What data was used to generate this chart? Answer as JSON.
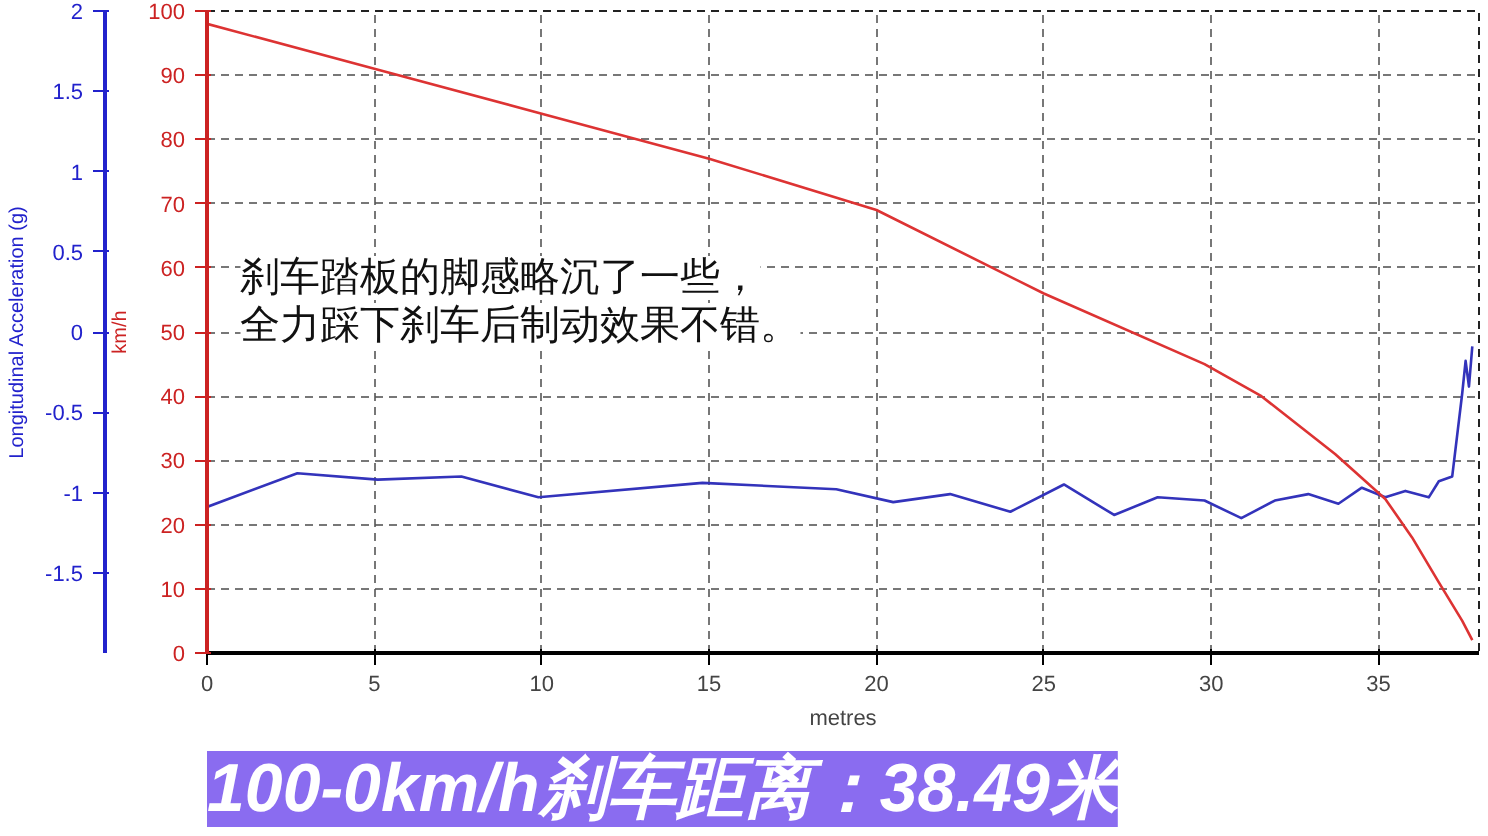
{
  "chart_data": {
    "type": "line",
    "title": "100-0km/h刹车距离：38.49米",
    "xlabel": "metres",
    "ylabel": "Longitudinal Acceleration (g)",
    "y2label": "km/h",
    "annotations": [
      "刹车踏板的脚感略沉了一些，",
      "全力踩下刹车后制动效果不错。"
    ],
    "xlim": [
      0,
      38
    ],
    "xticks": [
      0,
      5,
      10,
      15,
      20,
      25,
      30,
      35
    ],
    "ylim": [
      -2,
      2
    ],
    "yticks": [
      -1.5,
      -1,
      -0.5,
      0,
      0.5,
      1,
      1.5,
      2
    ],
    "y2lim": [
      0,
      100
    ],
    "y2ticks": [
      0,
      10,
      20,
      30,
      40,
      50,
      60,
      70,
      80,
      90,
      100
    ],
    "grid": true,
    "marker": "none",
    "line_style": "solid",
    "series": [
      {
        "color": "#3333bb",
        "x": [
          0,
          2.7,
          5.1,
          7.6,
          9.9,
          14.8,
          18.8,
          20.5,
          22.2,
          24.0,
          25.6,
          27.1,
          28.4,
          29.8,
          30.9,
          31.9,
          32.9,
          33.8,
          34.5,
          35.2,
          35.8,
          36.5,
          36.8,
          37.2,
          37.5,
          37.6,
          37.7,
          37.8
        ],
        "values": [
          -1.09,
          -0.88,
          -0.92,
          -0.9,
          -1.03,
          -0.94,
          -0.98,
          -1.06,
          -1.01,
          -1.12,
          -0.95,
          -1.14,
          -1.03,
          -1.05,
          -1.16,
          -1.05,
          -1.01,
          -1.07,
          -0.97,
          -1.03,
          -0.99,
          -1.03,
          -0.93,
          -0.9,
          -0.38,
          -0.18,
          -0.34,
          -0.09
        ]
      },
      {
        "color": "#dd3333",
        "axis": "y2",
        "x": [
          0,
          5,
          10,
          15,
          20,
          25,
          29.8,
          31.5,
          33.7,
          35.2,
          36.0,
          36.8,
          37.5,
          37.8
        ],
        "values": [
          98,
          91,
          84,
          77,
          69,
          56,
          45,
          40,
          31,
          24,
          18,
          11,
          5,
          2
        ]
      }
    ]
  }
}
